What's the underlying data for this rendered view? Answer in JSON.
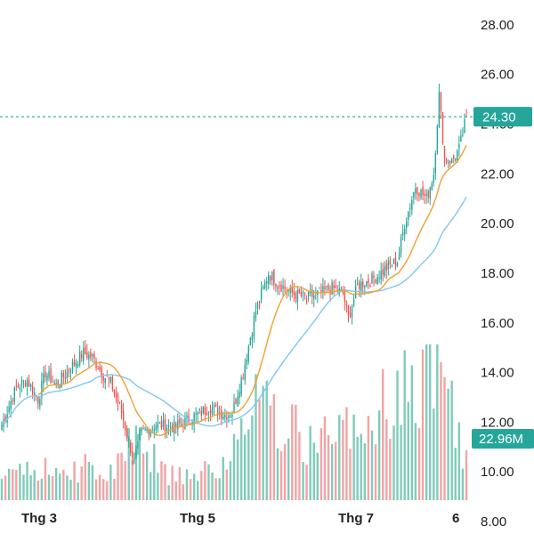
{
  "colors": {
    "up": "#26a69a",
    "down": "#ef5350",
    "ma_fast": "#f0a030",
    "ma_slow": "#7ec8f0",
    "vol_up": "#7fcbb9",
    "vol_down": "#f4a3a3",
    "badge": "#26a69a",
    "last_line": "#26a69a"
  },
  "chart_data": {
    "type": "candlestick",
    "y_axis": {
      "side": "right",
      "range": [
        7.5,
        29
      ],
      "ticks": [
        "28.00",
        "26.00",
        "24.00",
        "22.00",
        "20.00",
        "18.00",
        "16.00",
        "14.00",
        "12.00",
        "10.00",
        "8.00"
      ]
    },
    "x_axis": {
      "ticks": [
        "Thg 3",
        "Thg 5",
        "Thg 7",
        "6"
      ]
    },
    "last_price": {
      "value": 24.3,
      "label": "24.30"
    },
    "volume_badge": "22.96M",
    "moving_averages": [
      {
        "color_key": "ma_fast"
      },
      {
        "color_key": "ma_slow"
      }
    ],
    "grid": false,
    "legend": "none",
    "price_keypoints": [
      [
        0,
        11.9
      ],
      [
        8,
        13.4
      ],
      [
        14,
        13.7
      ],
      [
        20,
        12.9
      ],
      [
        24,
        14.0
      ],
      [
        30,
        13.5
      ],
      [
        38,
        14.2
      ],
      [
        45,
        14.8
      ],
      [
        50,
        14.6
      ],
      [
        56,
        13.9
      ],
      [
        60,
        13.6
      ],
      [
        66,
        12.4
      ],
      [
        70,
        11.2
      ],
      [
        73,
        10.4
      ],
      [
        77,
        11.6
      ],
      [
        85,
        11.9
      ],
      [
        95,
        11.8
      ],
      [
        105,
        12.2
      ],
      [
        115,
        12.6
      ],
      [
        123,
        12.3
      ],
      [
        127,
        12.4
      ],
      [
        133,
        14.0
      ],
      [
        140,
        16.5
      ],
      [
        147,
        18.0
      ],
      [
        152,
        17.6
      ],
      [
        160,
        17.2
      ],
      [
        168,
        17.0
      ],
      [
        175,
        17.2
      ],
      [
        182,
        17.4
      ],
      [
        188,
        17.2
      ],
      [
        191,
        16.2
      ],
      [
        196,
        17.5
      ],
      [
        205,
        17.8
      ],
      [
        212,
        18.2
      ],
      [
        218,
        18.5
      ],
      [
        222,
        20.0
      ],
      [
        228,
        21.5
      ],
      [
        234,
        21.0
      ],
      [
        238,
        22.0
      ],
      [
        241,
        25.2
      ],
      [
        244,
        22.6
      ],
      [
        248,
        22.5
      ],
      [
        252,
        23.0
      ],
      [
        256,
        24.3
      ]
    ],
    "volume_keypoints": [
      [
        0,
        1.2
      ],
      [
        30,
        1.3
      ],
      [
        60,
        1.4
      ],
      [
        75,
        2.5
      ],
      [
        90,
        1.1
      ],
      [
        110,
        1.3
      ],
      [
        125,
        1.4
      ],
      [
        135,
        3.8
      ],
      [
        150,
        3.4
      ],
      [
        165,
        2.6
      ],
      [
        185,
        2.5
      ],
      [
        200,
        3.1
      ],
      [
        215,
        4.2
      ],
      [
        230,
        4.6
      ],
      [
        240,
        7.2
      ],
      [
        245,
        4.5
      ],
      [
        256,
        1.6
      ]
    ]
  }
}
